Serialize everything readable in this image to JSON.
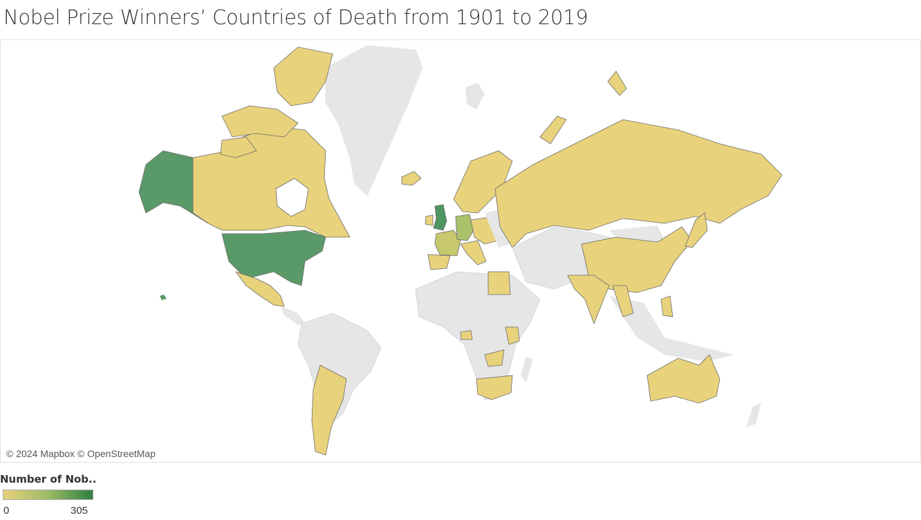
{
  "title": "Nobel Prize Winners’ Countries of Death from 1901 to 2019",
  "map": {
    "attribution": "© 2024 Mapbox © OpenStreetMap",
    "colors": {
      "no_data": "#e6e6e6",
      "low": "#e8d27c",
      "mid": "#9dbb66",
      "high": "#2f7f44",
      "border": "#6b6b6b",
      "nodata_border": "#cfcfcf"
    }
  },
  "legend": {
    "title": "Number of Nob..",
    "min_label": "0",
    "max_label": "305",
    "min_value": 0,
    "max_value": 305,
    "gradient": [
      "#e8d27c",
      "#9dbb66",
      "#2f7f44"
    ]
  }
}
